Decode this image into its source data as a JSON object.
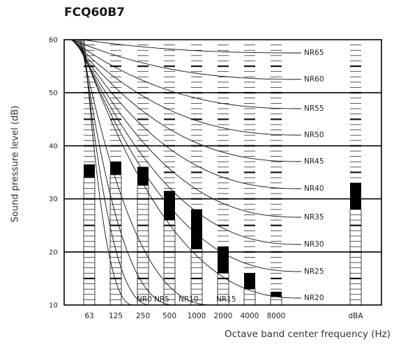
{
  "chart_data": {
    "type": "bar",
    "title": "FCQ60B7",
    "xlabel": "Octave band center frequency (Hz)",
    "ylabel": "Sound pressure level (dB)",
    "ylim": [
      10,
      60
    ],
    "yticks": [
      "10",
      "20",
      "30",
      "40",
      "50",
      "60"
    ],
    "categories": [
      "63",
      "125",
      "250",
      "500",
      "1000",
      "2000",
      "4000",
      "8000",
      "dBA"
    ],
    "ranges": [
      {
        "category": "63",
        "low": 34,
        "high": 36.5
      },
      {
        "category": "125",
        "low": 34.5,
        "high": 37
      },
      {
        "category": "250",
        "low": 32.5,
        "high": 36
      },
      {
        "category": "500",
        "low": 26,
        "high": 31.5
      },
      {
        "category": "1000",
        "low": 20.5,
        "high": 28
      },
      {
        "category": "2000",
        "low": 16,
        "high": 21
      },
      {
        "category": "4000",
        "low": 13,
        "high": 16
      },
      {
        "category": "8000",
        "low": 11.5,
        "high": 12.5
      },
      {
        "category": "dBA",
        "low": 28,
        "high": 33
      }
    ],
    "nr_curves": [
      "NR65",
      "NR60",
      "NR55",
      "NR50",
      "NR45",
      "NR40",
      "NR35",
      "NR30",
      "NR25",
      "NR20",
      "NR15",
      "NR10",
      "NR5",
      "NR0"
    ],
    "grid": true
  }
}
